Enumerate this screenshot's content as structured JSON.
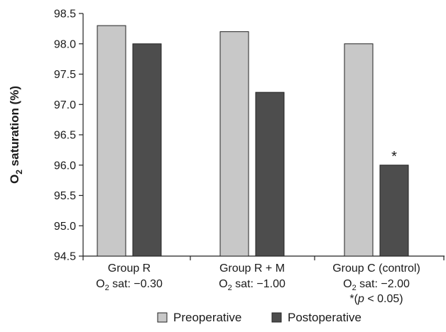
{
  "chart_data": {
    "type": "bar",
    "title": "",
    "ylabel": {
      "main": "O",
      "sub": "2",
      "rest": " saturation (%)"
    },
    "ylim": [
      94.5,
      98.5
    ],
    "yticks": [
      "94.5",
      "95.0",
      "95.5",
      "96.0",
      "96.5",
      "97.0",
      "97.5",
      "98.0",
      "98.5"
    ],
    "categories": [
      {
        "name": "Group R",
        "sat_prefix": "O",
        "sat_sub": "2",
        "sat_text": " sat: −0.30",
        "note": ""
      },
      {
        "name": "Group R + M",
        "sat_prefix": "O",
        "sat_sub": "2",
        "sat_text": " sat: −1.00",
        "note": ""
      },
      {
        "name": "Group C (control)",
        "sat_prefix": "O",
        "sat_sub": "2",
        "sat_text": " sat: −2.00",
        "note": "*(p < 0.05)"
      }
    ],
    "series": [
      {
        "name": "Preoperative",
        "color": "#c8c8c8",
        "values": [
          98.3,
          98.2,
          98.0
        ]
      },
      {
        "name": "Postoperative",
        "color": "#4d4d4d",
        "values": [
          98.0,
          97.2,
          96.0
        ]
      }
    ],
    "annotations": [
      {
        "text": "*",
        "series": 1,
        "category": 2
      }
    ],
    "grid": false,
    "legend_position": "bottom"
  }
}
